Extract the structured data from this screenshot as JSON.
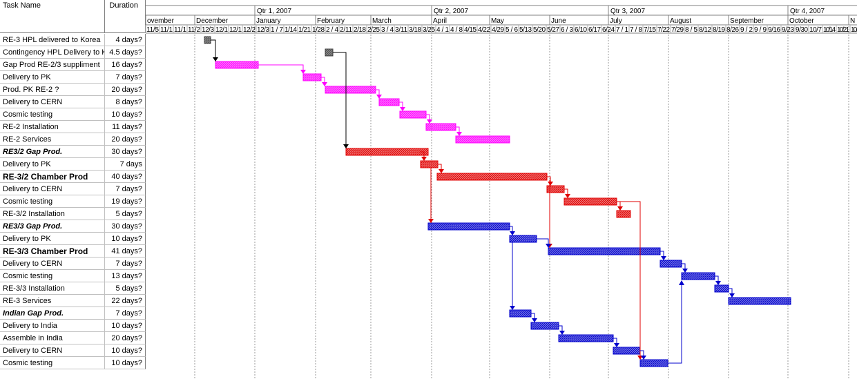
{
  "table": {
    "header_task": "Task Name",
    "header_duration": "Duration",
    "rows": [
      {
        "name": "RE-3 HPL delivered to Korea",
        "duration": "4 days?",
        "style": "normal"
      },
      {
        "name": "Contingency HPL Delivery to K",
        "duration": "4.5 days?",
        "style": "normal"
      },
      {
        "name": "Gap Prod RE-2/3 suppliment",
        "duration": "16 days?",
        "style": "normal"
      },
      {
        "name": "Delivery to PK",
        "duration": "7 days?",
        "style": "normal"
      },
      {
        "name": "Prod. PK RE-2 ?",
        "duration": "20 days?",
        "style": "normal"
      },
      {
        "name": "Delivery to CERN",
        "duration": "8 days?",
        "style": "normal"
      },
      {
        "name": "Cosmic testing",
        "duration": "10 days?",
        "style": "normal"
      },
      {
        "name": "RE-2 Installation",
        "duration": "11 days?",
        "style": "normal"
      },
      {
        "name": "RE-2 Services",
        "duration": "20 days?",
        "style": "normal"
      },
      {
        "name": "RE3/2 Gap Prod.",
        "duration": "30 days?",
        "style": "bolditalic"
      },
      {
        "name": "Delivery to PK",
        "duration": "7 days",
        "style": "normal"
      },
      {
        "name": "RE-3/2 Chamber Prod",
        "duration": "40 days?",
        "style": "bold"
      },
      {
        "name": "Delivery to CERN",
        "duration": "7 days?",
        "style": "normal"
      },
      {
        "name": "Cosmic testing",
        "duration": "19 days?",
        "style": "normal"
      },
      {
        "name": "RE-3/2 Installation",
        "duration": "5 days?",
        "style": "normal"
      },
      {
        "name": "RE3/3 Gap Prod.",
        "duration": "30 days?",
        "style": "bolditalic"
      },
      {
        "name": "Delivery to PK",
        "duration": "10 days?",
        "style": "normal"
      },
      {
        "name": "RE-3/3 Chamber Prod",
        "duration": "41 days?",
        "style": "bold"
      },
      {
        "name": "Delivery to CERN",
        "duration": "7 days?",
        "style": "normal"
      },
      {
        "name": "Cosmic testing",
        "duration": "13 days?",
        "style": "normal"
      },
      {
        "name": "RE-3/3 Installation",
        "duration": "5 days?",
        "style": "normal"
      },
      {
        "name": "RE-3 Services",
        "duration": "22 days?",
        "style": "normal"
      },
      {
        "name": "Indian Gap Prod.",
        "duration": "7 days?",
        "style": "bolditalic"
      },
      {
        "name": "Delivery to India",
        "duration": "10 days?",
        "style": "normal"
      },
      {
        "name": "Assemble in  India",
        "duration": "20 days?",
        "style": "normal"
      },
      {
        "name": "Delivery to CERN",
        "duration": "10 days?",
        "style": "normal"
      },
      {
        "name": "Cosmic testing",
        "duration": "10 days?",
        "style": "normal"
      }
    ]
  },
  "timescale": {
    "quarters": [
      "Qtr 1, 2007",
      "Qtr 2, 2007",
      "Qtr 3, 2007",
      "Qtr 4, 2007"
    ],
    "months": [
      "ovember",
      "December",
      "January",
      "February",
      "March",
      "April",
      "May",
      "June",
      "July",
      "August",
      "September",
      "October",
      "N"
    ],
    "week_labels": [
      "11/5",
      "11/1",
      "11/1",
      "11/2",
      "12/3",
      "12/1",
      "12/1",
      "12/2",
      "12/3",
      "1/7",
      "1/14",
      "1/21",
      "1/28",
      "2/4",
      "2/11",
      "2/18",
      "2/25",
      "3/4",
      "3/11",
      "3/18",
      "3/25",
      "4/1",
      "4/8",
      "4/15",
      "4/22",
      "4/29",
      "5/6",
      "5/13",
      "5/20",
      "5/27",
      "6/3",
      "6/10",
      "6/17",
      "6/24",
      "7/1",
      "7/8",
      "7/15",
      "7/22",
      "7/29",
      "8/5",
      "8/12",
      "8/19",
      "8/26",
      "9/2",
      "9/9",
      "9/16",
      "9/23",
      "9/30",
      "10/7",
      "10/14",
      "10/21",
      "10/28"
    ]
  },
  "colors": {
    "milestone": "#404040",
    "group_magenta": "#ff00ff",
    "group_red": "#e00000",
    "group_blue": "#0000cc",
    "link_black": "#000000"
  }
}
